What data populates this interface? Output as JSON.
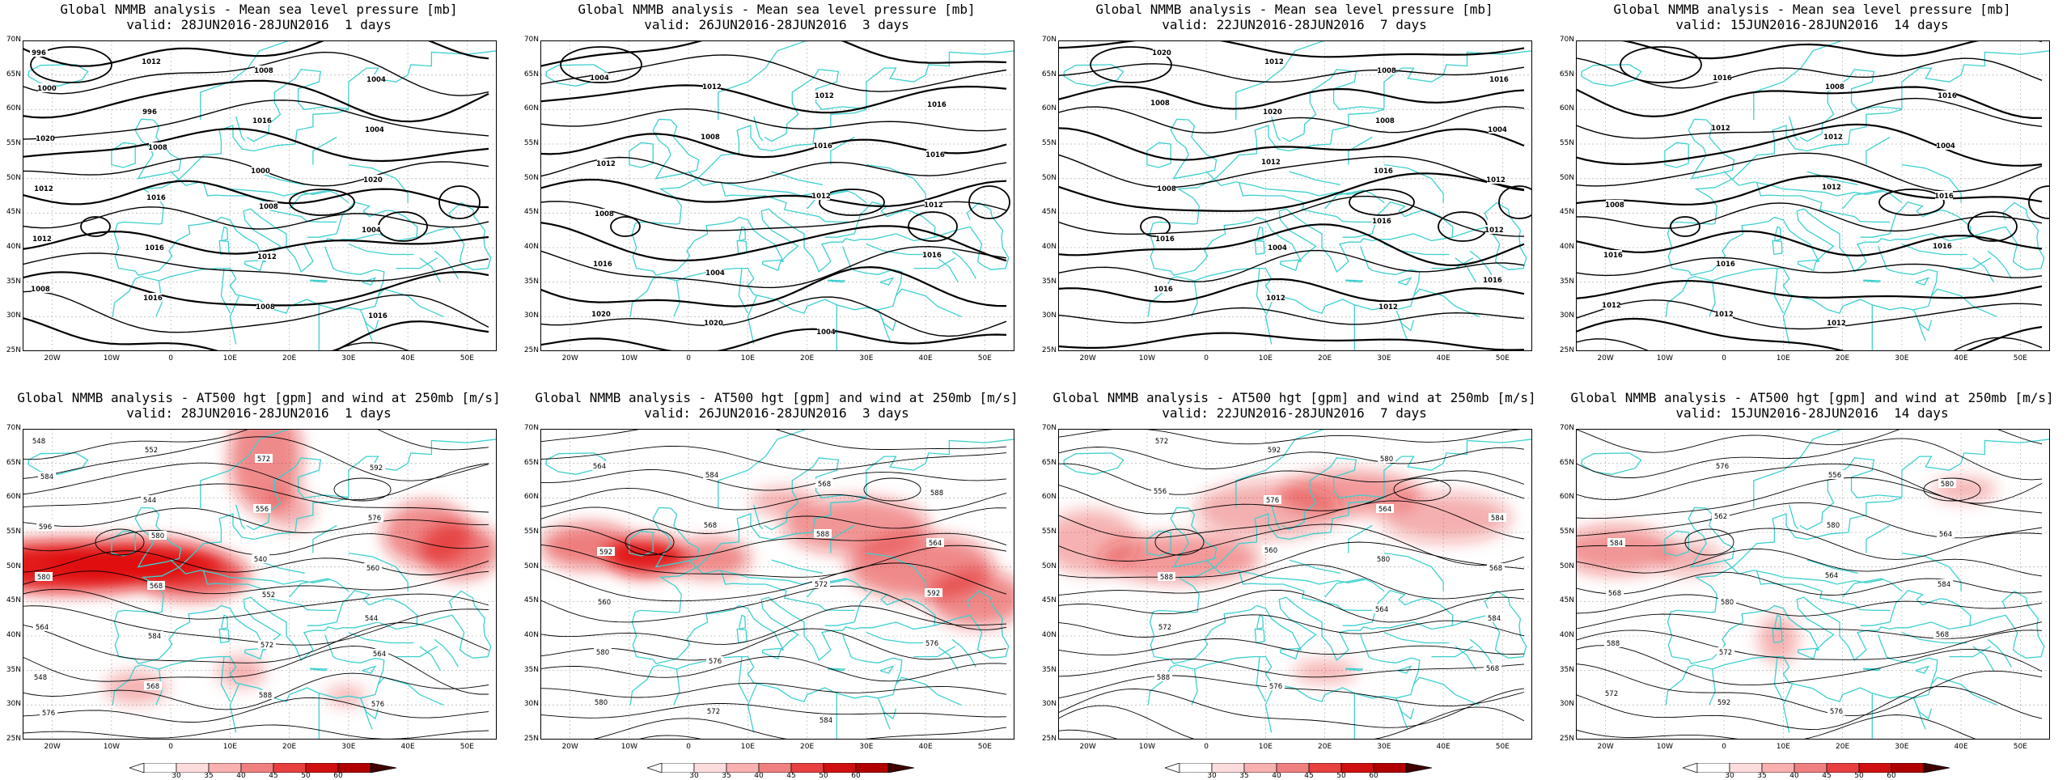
{
  "rows": [
    {
      "title": "Global NMMB analysis - Mean sea level pressure [mb]",
      "kind": "mslp",
      "panels": [
        {
          "valid": "valid: 28JUN2016-28JUN2016  1 days",
          "labels": [
            "996",
            "996",
            "1000",
            "1004",
            "1008",
            "1012",
            "1016",
            "1020",
            "1012",
            "1016",
            "1008",
            "1004",
            "1012",
            "1016",
            "1008",
            "1004",
            "1020",
            "1016",
            "1012",
            "1016",
            "1000",
            "1008",
            "1008"
          ]
        },
        {
          "valid": "valid: 26JUN2016-28JUN2016  3 days",
          "labels": [
            "1004",
            "1008",
            "1012",
            "1016",
            "1020",
            "1012",
            "1016",
            "1012",
            "1016",
            "1020",
            "1012",
            "1016",
            "1008",
            "1004",
            "1004",
            "1016",
            "1012"
          ]
        },
        {
          "valid": "valid: 22JUN2016-28JUN2016  7 days",
          "labels": [
            "1008",
            "1012",
            "1016",
            "1016",
            "1020",
            "1020",
            "1016",
            "1012",
            "1016",
            "1012",
            "1008",
            "1012",
            "1016",
            "1012",
            "1008",
            "1004",
            "1008",
            "1004",
            "1012",
            "1016"
          ]
        },
        {
          "valid": "valid: 15JUN2016-28JUN2016  14 days",
          "labels": [
            "1012",
            "1012",
            "1016",
            "1012",
            "1016",
            "1012",
            "1016",
            "1016",
            "1012",
            "1008",
            "1004",
            "1008",
            "1016",
            "1012",
            "1016"
          ]
        }
      ]
    },
    {
      "title": "Global NMMB analysis - AT500 hgt [gpm] and wind at 250mb [m/s]",
      "kind": "z500",
      "panels": [
        {
          "valid": "valid: 28JUN2016-28JUN2016  1 days",
          "labels": [
            "548",
            "544",
            "540",
            "544",
            "548",
            "552",
            "556",
            "560",
            "564",
            "568",
            "572",
            "576",
            "580",
            "584",
            "588",
            "592",
            "596",
            "568",
            "572",
            "576",
            "584",
            "580",
            "552",
            "564",
            "576"
          ]
        },
        {
          "valid": "valid: 26JUN2016-28JUN2016  3 days",
          "labels": [
            "564",
            "568",
            "572",
            "576",
            "580",
            "584",
            "588",
            "592",
            "580",
            "572",
            "568",
            "564",
            "560",
            "576",
            "584",
            "588",
            "592"
          ]
        },
        {
          "valid": "valid: 22JUN2016-28JUN2016  7 days",
          "labels": [
            "556",
            "560",
            "564",
            "568",
            "572",
            "576",
            "580",
            "584",
            "588",
            "592",
            "564",
            "568",
            "572",
            "576",
            "580",
            "584",
            "588"
          ]
        },
        {
          "valid": "valid: 15JUN2016-28JUN2016  14 days",
          "labels": [
            "562",
            "564",
            "568",
            "572",
            "576",
            "580",
            "584",
            "588",
            "592",
            "556",
            "564",
            "568",
            "572",
            "576",
            "580",
            "584",
            "580"
          ]
        }
      ]
    }
  ],
  "axes": {
    "lat_labels": [
      "70N",
      "65N",
      "60N",
      "55N",
      "50N",
      "45N",
      "40N",
      "35N",
      "30N",
      "25N"
    ],
    "lon_labels": [
      "20W",
      "10W",
      "0",
      "10E",
      "20E",
      "30E",
      "40E",
      "50E"
    ]
  },
  "colorbar": {
    "labels": [
      "30",
      "35",
      "40",
      "45",
      "50",
      "60"
    ]
  },
  "colors": {
    "coast": "#3ecfcf",
    "contour": "#000000",
    "wind": "#e01010"
  }
}
